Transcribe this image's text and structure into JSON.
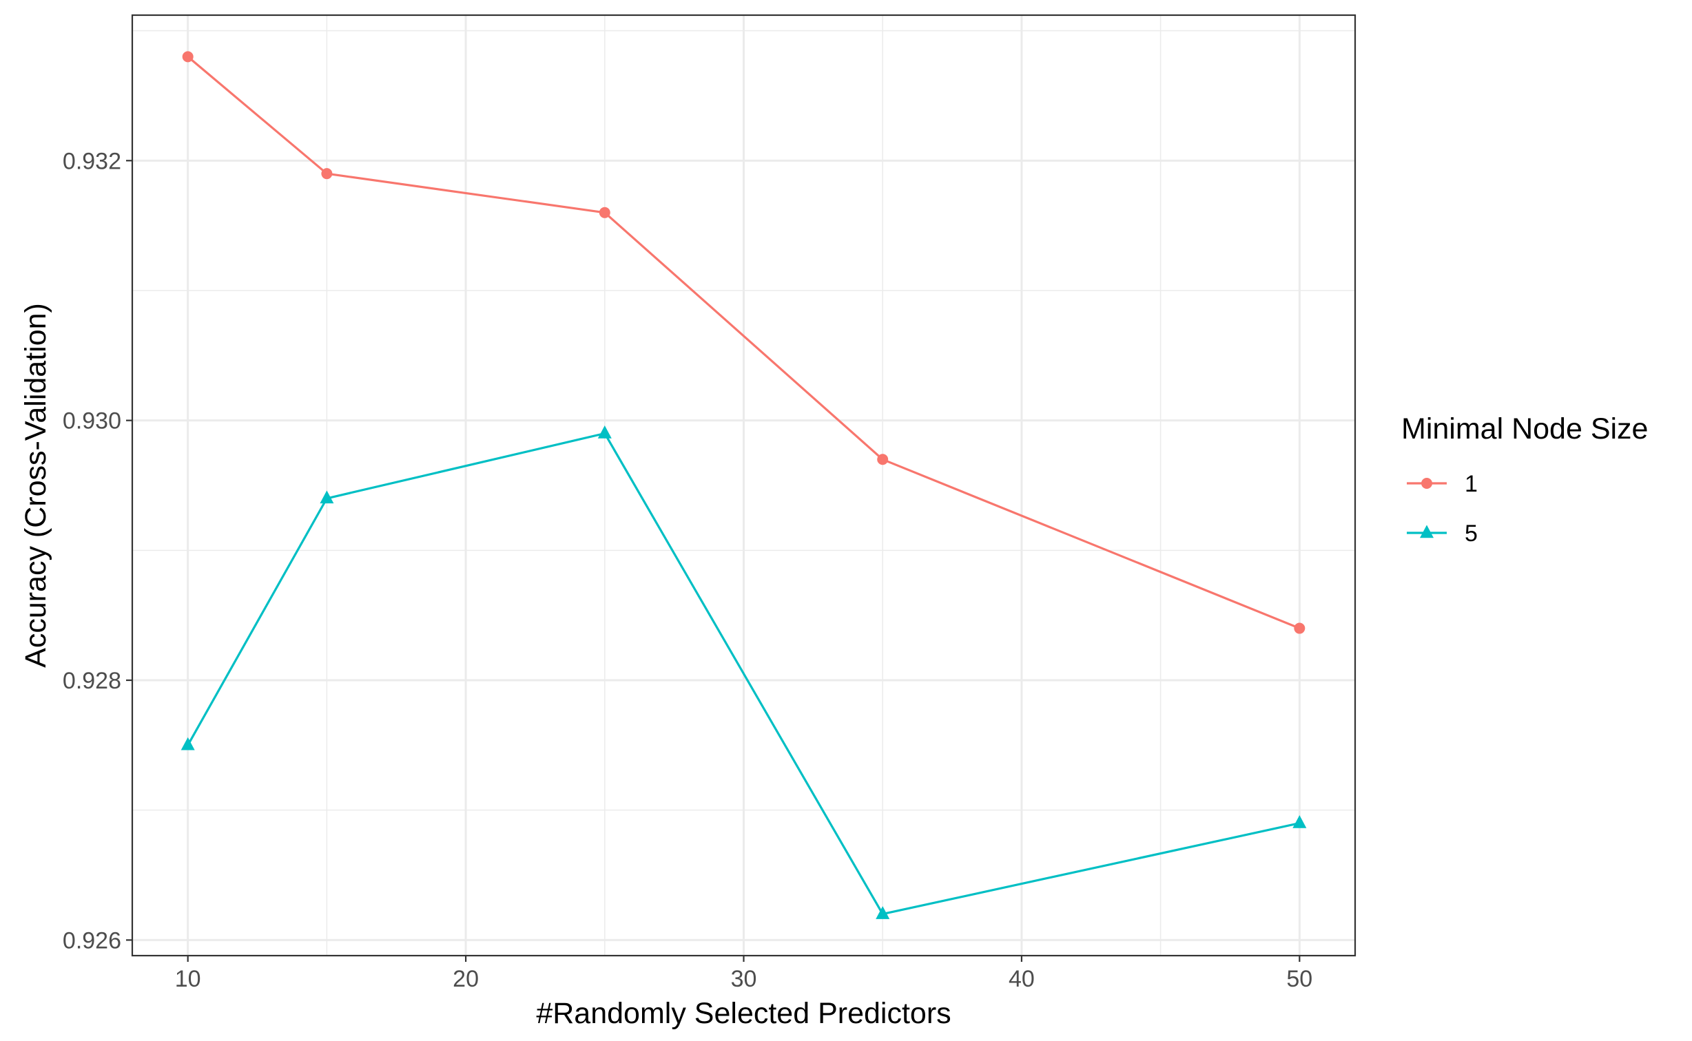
{
  "chart_data": {
    "type": "line",
    "title": "",
    "xlabel": "#Randomly Selected Predictors",
    "ylabel": "Accuracy (Cross-Validation)",
    "x": [
      10,
      15,
      25,
      35,
      50
    ],
    "xlim": [
      8,
      52
    ],
    "ylim": [
      0.92588,
      0.93312
    ],
    "x_ticks": [
      10,
      20,
      30,
      40,
      50
    ],
    "x_tick_labels": [
      "10",
      "20",
      "30",
      "40",
      "50"
    ],
    "y_ticks": [
      0.926,
      0.928,
      0.93,
      0.932
    ],
    "y_tick_labels": [
      "0.926",
      "0.928",
      "0.930",
      "0.932"
    ],
    "grid": true,
    "legend_position": "right",
    "legend_title": "Minimal Node Size",
    "series": [
      {
        "name": "1",
        "color": "#F8766D",
        "marker": "circle",
        "values": [
          0.9328,
          0.9319,
          0.9316,
          0.9297,
          0.9284
        ]
      },
      {
        "name": "5",
        "color": "#00BFC4",
        "marker": "triangle",
        "values": [
          0.9275,
          0.9294,
          0.9299,
          0.9262,
          0.9269
        ]
      }
    ]
  }
}
